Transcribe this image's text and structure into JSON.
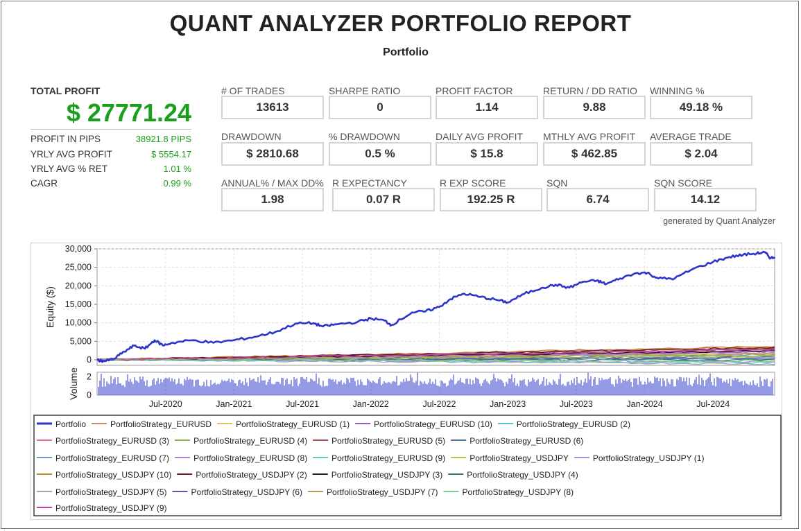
{
  "report": {
    "title": "QUANT ANALYZER PORTFOLIO REPORT",
    "subtitle": "Portfolio",
    "generated_by": "generated by Quant Analyzer"
  },
  "summary": {
    "total_profit_label": "TOTAL PROFIT",
    "total_profit_value": "$ 27771.24",
    "rows": [
      {
        "label": "PROFIT IN PIPS",
        "value": "38921.8 PIPS"
      },
      {
        "label": "YRLY AVG PROFIT",
        "value": "$ 5554.17"
      },
      {
        "label": "YRLY AVG % RET",
        "value": "1.01 %"
      },
      {
        "label": "CAGR",
        "value": "0.99 %"
      }
    ]
  },
  "stats_row1": [
    {
      "label": "# OF TRADES",
      "value": "13613"
    },
    {
      "label": "SHARPE RATIO",
      "value": "0"
    },
    {
      "label": "PROFIT FACTOR",
      "value": "1.14"
    },
    {
      "label": "RETURN / DD RATIO",
      "value": "9.88"
    },
    {
      "label": "WINNING %",
      "value": "49.18 %"
    }
  ],
  "stats_row2": [
    {
      "label": "DRAWDOWN",
      "value": "$ 2810.68"
    },
    {
      "label": "% DRAWDOWN",
      "value": "0.5 %"
    },
    {
      "label": "DAILY AVG PROFIT",
      "value": "$ 15.8"
    },
    {
      "label": "MTHLY AVG PROFIT",
      "value": "$ 462.85"
    },
    {
      "label": "AVERAGE TRADE",
      "value": "$ 2.04"
    }
  ],
  "stats_row3": [
    {
      "label": "ANNUAL% / MAX DD%",
      "value": "1.98"
    },
    {
      "label": "R EXPECTANCY",
      "value": "0.07 R"
    },
    {
      "label": "R EXP SCORE",
      "value": "192.25 R"
    },
    {
      "label": "SQN",
      "value": "6.74"
    },
    {
      "label": "SQN SCORE",
      "value": "14.12"
    }
  ],
  "chart_data": {
    "type": "line",
    "ylabel": "Equity ($)",
    "ylim": [
      -1500,
      30000
    ],
    "yticks": [
      0,
      5000,
      10000,
      15000,
      20000,
      25000,
      30000
    ],
    "ytick_labels": [
      "0",
      "5,000",
      "10,000",
      "15,000",
      "20,000",
      "25,000",
      "30,000"
    ],
    "x_range": [
      2020.0,
      2024.95
    ],
    "xticks": [
      2020.5,
      2021.0,
      2021.5,
      2022.0,
      2022.5,
      2023.0,
      2023.5,
      2024.0,
      2024.5
    ],
    "xtick_labels": [
      "Jul-2020",
      "Jan-2021",
      "Jul-2021",
      "Jan-2022",
      "Jul-2022",
      "Jan-2023",
      "Jul-2023",
      "Jan-2024",
      "Jul-2024"
    ],
    "grid": true,
    "portfolio": {
      "name": "Portfolio",
      "color": "#2b35c9",
      "points": [
        [
          2020.0,
          0
        ],
        [
          2020.05,
          -400
        ],
        [
          2020.12,
          200
        ],
        [
          2020.2,
          2200
        ],
        [
          2020.27,
          3800
        ],
        [
          2020.35,
          3000
        ],
        [
          2020.42,
          5300
        ],
        [
          2020.48,
          3900
        ],
        [
          2020.55,
          4600
        ],
        [
          2020.7,
          5300
        ],
        [
          2020.85,
          4600
        ],
        [
          2021.0,
          5300
        ],
        [
          2021.15,
          6200
        ],
        [
          2021.3,
          7500
        ],
        [
          2021.45,
          9800
        ],
        [
          2021.58,
          9900
        ],
        [
          2021.65,
          9000
        ],
        [
          2021.75,
          9600
        ],
        [
          2021.9,
          10200
        ],
        [
          2022.0,
          11200
        ],
        [
          2022.1,
          10600
        ],
        [
          2022.15,
          9400
        ],
        [
          2022.3,
          12800
        ],
        [
          2022.4,
          13100
        ],
        [
          2022.5,
          14300
        ],
        [
          2022.58,
          16400
        ],
        [
          2022.68,
          17900
        ],
        [
          2022.8,
          17000
        ],
        [
          2022.92,
          16200
        ],
        [
          2023.0,
          15500
        ],
        [
          2023.12,
          17800
        ],
        [
          2023.25,
          19500
        ],
        [
          2023.35,
          20300
        ],
        [
          2023.45,
          19500
        ],
        [
          2023.55,
          21100
        ],
        [
          2023.65,
          21400
        ],
        [
          2023.72,
          20500
        ],
        [
          2023.82,
          22000
        ],
        [
          2023.95,
          23500
        ],
        [
          2024.02,
          23500
        ],
        [
          2024.1,
          22000
        ],
        [
          2024.22,
          22000
        ],
        [
          2024.35,
          24500
        ],
        [
          2024.5,
          26500
        ],
        [
          2024.62,
          27800
        ],
        [
          2024.72,
          28400
        ],
        [
          2024.82,
          28800
        ],
        [
          2024.88,
          29000
        ],
        [
          2024.92,
          27500
        ],
        [
          2024.95,
          27800
        ]
      ]
    },
    "strategies": [
      {
        "name": "PortfolioStrategy_EURUSD",
        "color": "#c98a6a",
        "end": 2600
      },
      {
        "name": "PortfolioStrategy_EURUSD (1)",
        "color": "#e8c460",
        "end": 1800
      },
      {
        "name": "PortfolioStrategy_EURUSD (10)",
        "color": "#9b59b6",
        "end": 2200
      },
      {
        "name": "PortfolioStrategy_EURUSD (2)",
        "color": "#5bc0de",
        "end": 1200
      },
      {
        "name": "PortfolioStrategy_EURUSD (3)",
        "color": "#d9748a",
        "end": 3400
      },
      {
        "name": "PortfolioStrategy_EURUSD (4)",
        "color": "#86b04a",
        "end": 1500
      },
      {
        "name": "PortfolioStrategy_EURUSD (5)",
        "color": "#a0504a",
        "end": 3000
      },
      {
        "name": "PortfolioStrategy_EURUSD (6)",
        "color": "#4a6e9a",
        "end": 900
      },
      {
        "name": "PortfolioStrategy_EURUSD (7)",
        "color": "#6a9ad0",
        "end": 600
      },
      {
        "name": "PortfolioStrategy_EURUSD (8)",
        "color": "#c27ad6",
        "end": 2000
      },
      {
        "name": "PortfolioStrategy_EURUSD (9)",
        "color": "#5fd0c0",
        "end": -800
      },
      {
        "name": "PortfolioStrategy_USDJPY",
        "color": "#b8c04a",
        "end": 1000
      },
      {
        "name": "PortfolioStrategy_USDJPY (1)",
        "color": "#a890e0",
        "end": -500
      },
      {
        "name": "PortfolioStrategy_USDJPY (10)",
        "color": "#c08a30",
        "end": 3600
      },
      {
        "name": "PortfolioStrategy_USDJPY (2)",
        "color": "#6a1a20",
        "end": 3300
      },
      {
        "name": "PortfolioStrategy_USDJPY (3)",
        "color": "#2a1a2a",
        "end": 2400
      },
      {
        "name": "PortfolioStrategy_USDJPY (4)",
        "color": "#2a7a6a",
        "end": 0
      },
      {
        "name": "PortfolioStrategy_USDJPY (5)",
        "color": "#9aaab8",
        "end": -1100
      },
      {
        "name": "PortfolioStrategy_USDJPY (6)",
        "color": "#5a5aa0",
        "end": 400
      },
      {
        "name": "PortfolioStrategy_USDJPY (7)",
        "color": "#b09a60",
        "end": 1600
      },
      {
        "name": "PortfolioStrategy_USDJPY (8)",
        "color": "#7ad08a",
        "end": -300
      },
      {
        "name": "PortfolioStrategy_USDJPY (9)",
        "color": "#c040b0",
        "end": 2800
      }
    ],
    "volume": {
      "ylabel": "Volume",
      "ylim": [
        0,
        2.5
      ],
      "yticks": [
        0,
        2
      ],
      "ytick_labels": [
        "0",
        "2"
      ],
      "color": "#2b35c9"
    }
  }
}
